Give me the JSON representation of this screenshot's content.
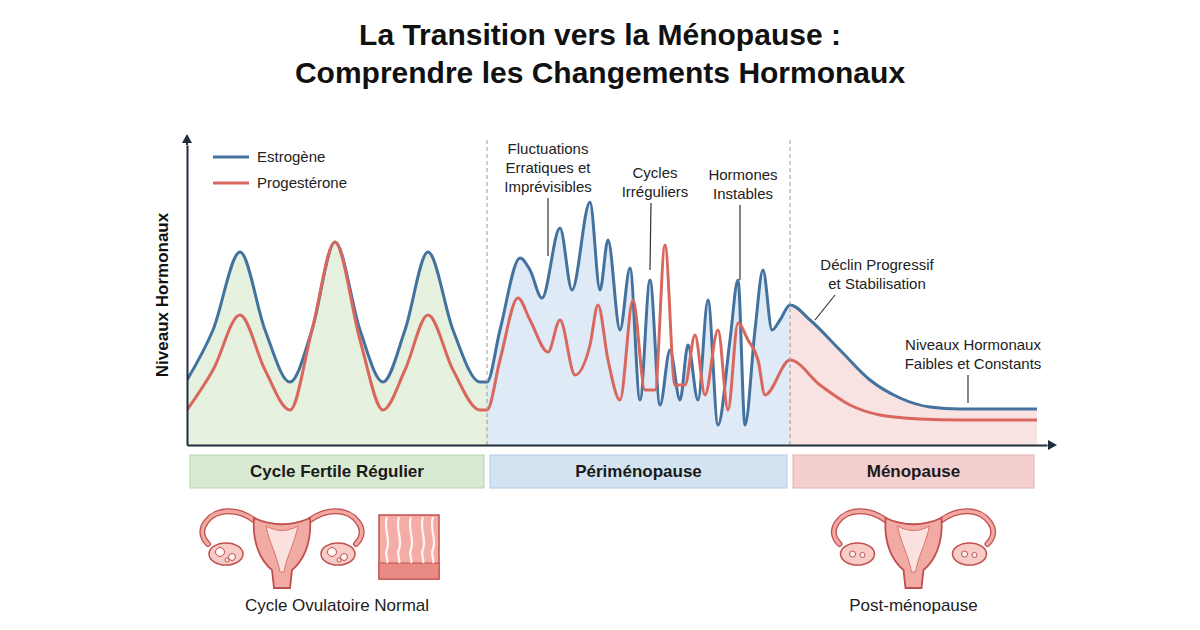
{
  "chart_data": {
    "type": "line",
    "title": [
      "La Transition vers la Ménopause :",
      "Comprendre les Changements Hormonaux"
    ],
    "y_label": "Niveaux Hormonaux",
    "xlim": [
      0,
      860
    ],
    "ylim": [
      0,
      300
    ],
    "tick_labels": false,
    "grid": false,
    "legend": "top-left",
    "series": [
      {
        "name": "Estrogène",
        "color": "#44729f",
        "x": [
          0,
          26,
          53,
          78,
          103,
          125,
          148,
          173,
          196,
          218,
          241,
          266,
          293,
          300,
          313,
          333,
          343,
          355,
          373,
          385,
          403,
          413,
          421,
          433,
          443,
          453,
          463,
          473,
          483,
          493,
          501,
          511,
          521,
          531,
          543,
          551,
          558,
          568,
          576,
          585,
          593,
          603,
          623,
          653,
          683,
          713,
          743,
          773,
          813,
          850
        ],
        "values": [
          65,
          115,
          193,
          115,
          63,
          115,
          203,
          115,
          63,
          115,
          193,
          115,
          63,
          63,
          115,
          187,
          175,
          147,
          217,
          155,
          243,
          155,
          205,
          115,
          177,
          45,
          165,
          40,
          95,
          45,
          100,
          45,
          145,
          20,
          105,
          165,
          20,
          115,
          175,
          115,
          125,
          140,
          125,
          95,
          65,
          47,
          38,
          36,
          36,
          36
        ]
      },
      {
        "name": "Progestérone",
        "color": "#d9675e",
        "x": [
          0,
          26,
          53,
          78,
          103,
          125,
          148,
          173,
          196,
          218,
          241,
          266,
          293,
          300,
          313,
          331,
          343,
          361,
          373,
          388,
          403,
          411,
          421,
          433,
          446,
          458,
          468,
          478,
          488,
          498,
          508,
          518,
          531,
          541,
          551,
          561,
          571,
          578,
          603,
          633,
          663,
          693,
          733,
          773,
          850
        ],
        "values": [
          35,
          75,
          130,
          75,
          35,
          115,
          203,
          105,
          35,
          75,
          130,
          75,
          35,
          35,
          85,
          147,
          125,
          93,
          125,
          70,
          100,
          140,
          85,
          45,
          145,
          55,
          55,
          200,
          60,
          60,
          110,
          50,
          115,
          35,
          122,
          105,
          85,
          50,
          85,
          60,
          40,
          30,
          26,
          25,
          25
        ]
      }
    ],
    "phases": [
      {
        "label": "Cycle Fertile Régulier",
        "start": 0,
        "end": 300,
        "caption": "Cycle Ovulatoire Normal"
      },
      {
        "label": "Périménopause",
        "start": 300,
        "end": 603
      },
      {
        "label": "Ménopause",
        "start": 603,
        "end": 850,
        "caption": "Post-ménopause"
      }
    ],
    "annotations": [
      {
        "lines": [
          "Fluctuations",
          "Erratiques et",
          "Imprévisibles"
        ],
        "x": 361,
        "y": 187
      },
      {
        "lines": [
          "Cycles",
          "Irréguliers"
        ],
        "x": 463,
        "y": 173
      },
      {
        "lines": [
          "Hormones",
          "Instables"
        ],
        "x": 553,
        "y": 163
      },
      {
        "lines": [
          "Déclin Progressif",
          "et Stabilisation"
        ],
        "x": 628,
        "y": 123
      },
      {
        "lines": [
          "Niveaux Hormonaux",
          "Faibles et Constants"
        ],
        "x": 781,
        "y": 40
      }
    ]
  }
}
